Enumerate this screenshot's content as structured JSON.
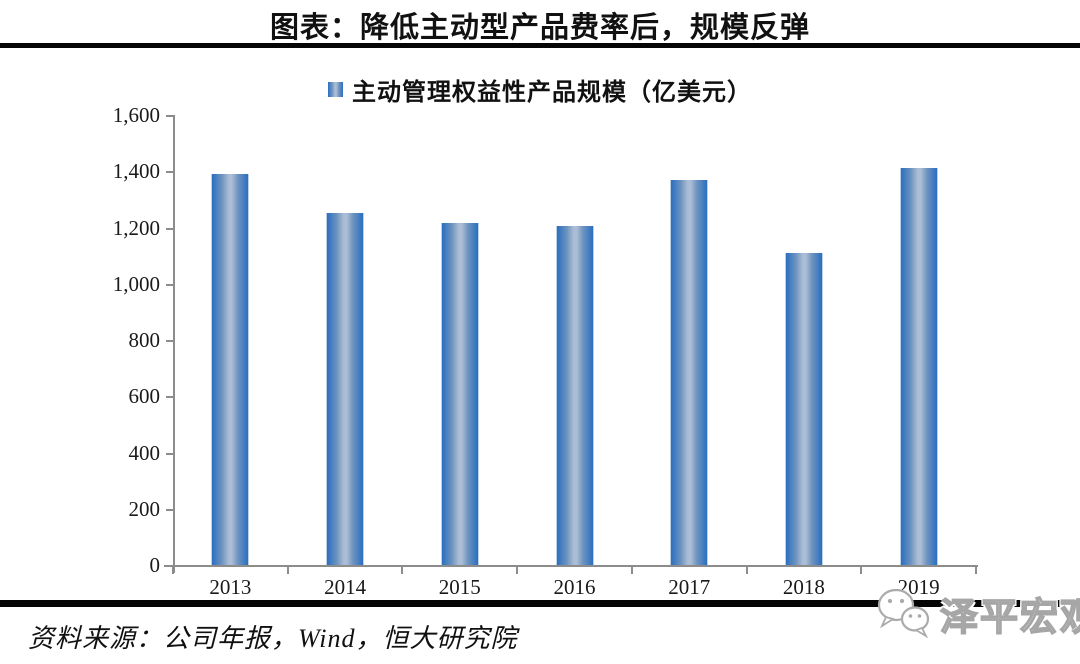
{
  "header": {
    "title": "图表：降低主动型产品费率后，规模反弹"
  },
  "legend": {
    "label": "主动管理权益性产品规模（亿美元）"
  },
  "chart_data": {
    "type": "bar",
    "title": "图表：降低主动型产品费率后，规模反弹",
    "legend_entries": [
      "主动管理权益性产品规模（亿美元）"
    ],
    "legend_position": "top-center",
    "categories": [
      "2013",
      "2014",
      "2015",
      "2016",
      "2017",
      "2018",
      "2019"
    ],
    "values": [
      1390,
      1250,
      1215,
      1205,
      1370,
      1110,
      1410
    ],
    "xlabel": "",
    "ylabel": "",
    "ylim": [
      0,
      1600
    ],
    "ytick_interval": 200,
    "ytick_values": [
      0,
      200,
      400,
      600,
      800,
      1000,
      1200,
      1400,
      1600
    ],
    "ytick_labels": [
      "0",
      "200",
      "400",
      "600",
      "800",
      "1,000",
      "1,200",
      "1,400",
      "1,600"
    ],
    "grid": false
  },
  "footer": {
    "source": "资料来源：公司年报，Wind，恒大研究院"
  },
  "watermark": {
    "label": "泽平宏观",
    "icon": "wechat-icon"
  },
  "colors": {
    "bar_edge": "#2a6fc0",
    "bar_mid": "#aebfd6",
    "axis": "#8c8c8c",
    "divider": "#050505",
    "text": "#111111",
    "watermark": "#a6a6a6"
  }
}
